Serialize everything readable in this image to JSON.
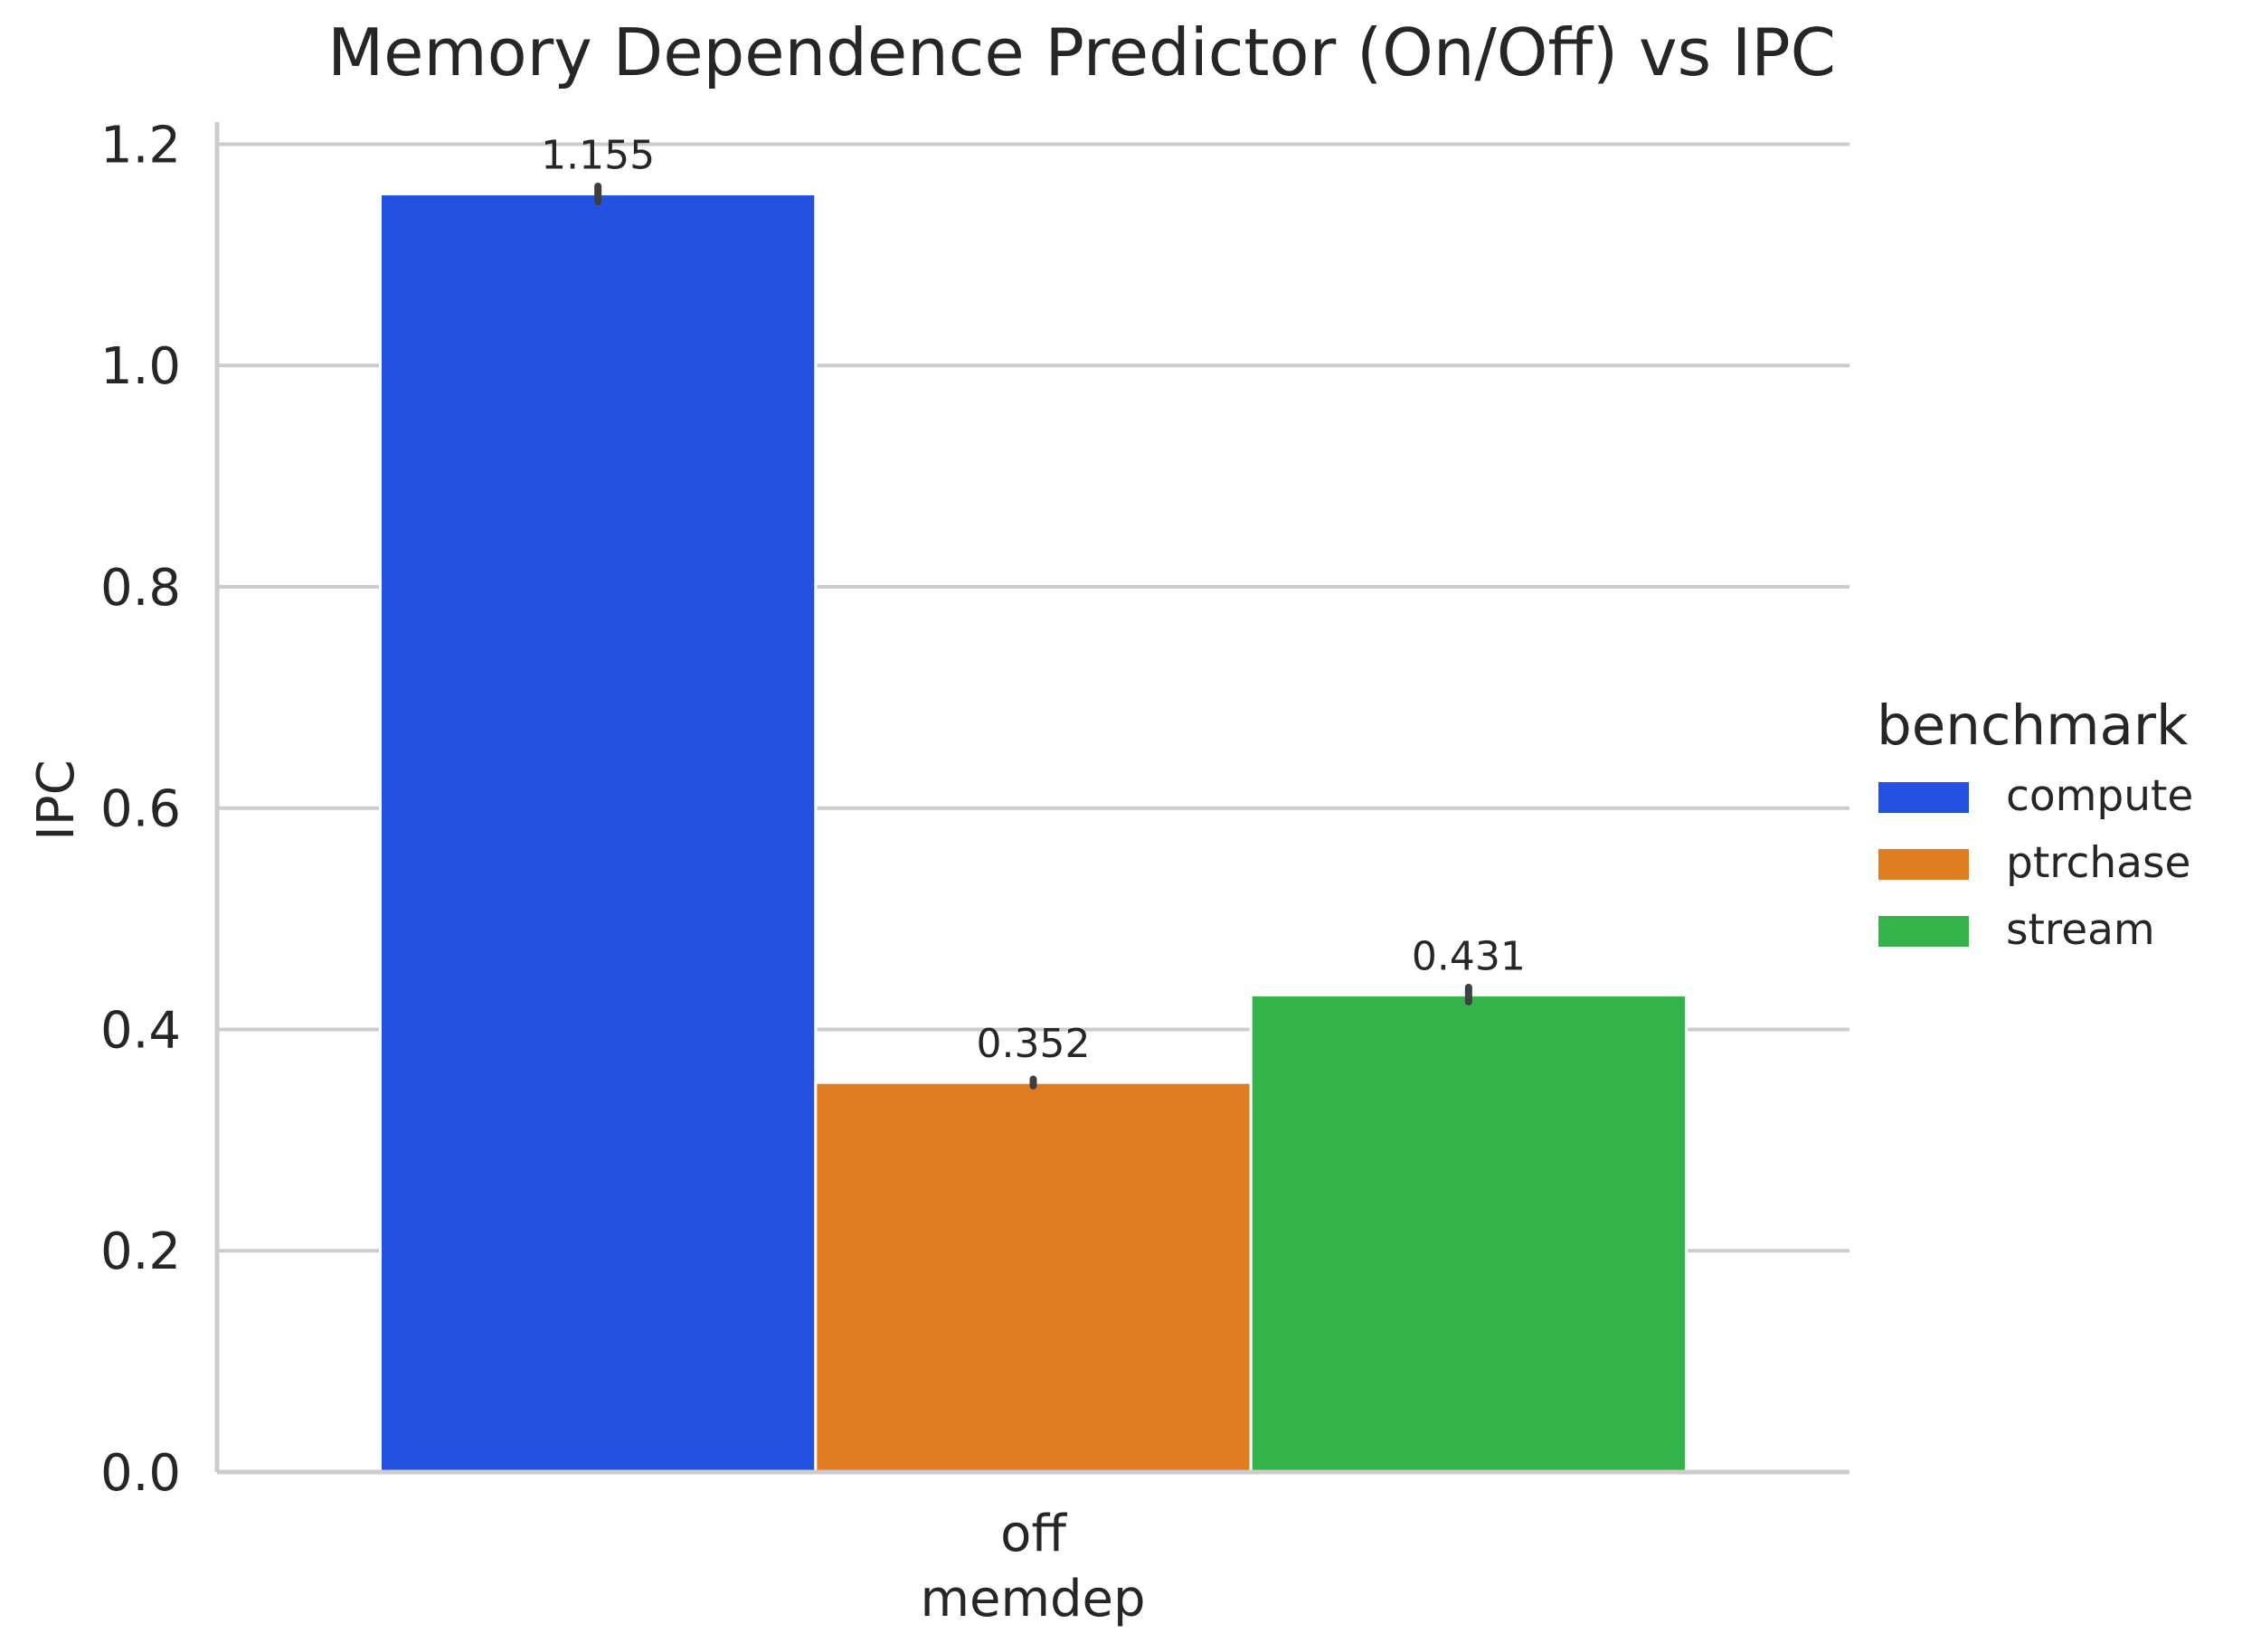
{
  "chart_data": {
    "type": "bar",
    "title": "Memory Dependence Predictor (On/Off) vs IPC",
    "xlabel": "memdep",
    "ylabel": "IPC",
    "categories": [
      "off"
    ],
    "ylim": [
      0,
      1.22
    ],
    "yticks": [
      0.0,
      0.2,
      0.4,
      0.6,
      0.8,
      1.0,
      1.2
    ],
    "ytick_labels": [
      "0.0",
      "0.2",
      "0.4",
      "0.6",
      "0.8",
      "1.0",
      "1.2"
    ],
    "grid": true,
    "legend": {
      "title": "benchmark",
      "placement": "right, outside plot"
    },
    "series": [
      {
        "name": "compute",
        "values": [
          1.155
        ],
        "error": [
          [
            1.148,
            1.162
          ]
        ],
        "color": "#2351e0",
        "label": "1.155"
      },
      {
        "name": "ptrchase",
        "values": [
          0.352
        ],
        "error": [
          [
            0.349,
            0.355
          ]
        ],
        "color": "#e07c22",
        "label": "0.352"
      },
      {
        "name": "stream",
        "values": [
          0.431
        ],
        "error": [
          [
            0.425,
            0.438
          ]
        ],
        "color": "#33b44a",
        "label": "0.431"
      }
    ]
  }
}
